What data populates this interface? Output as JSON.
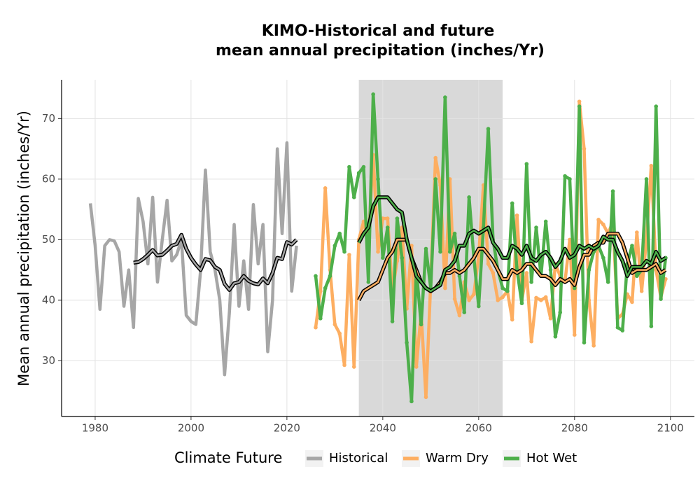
{
  "chart_data": {
    "type": "line",
    "title": [
      "KIMO-Historical and future",
      "mean annual precipitation (inches/Yr)"
    ],
    "y_label": "Mean annual precipitation (inches/Yr)",
    "legend_title": "Climate Future",
    "xlim": [
      1973,
      2105
    ],
    "ylim": [
      20.8,
      76.4
    ],
    "xticks": [
      1980,
      2000,
      2020,
      2040,
      2060,
      2080,
      2100
    ],
    "yticks": [
      30,
      40,
      50,
      60,
      70
    ],
    "grid": true,
    "shade": {
      "x": [
        2035,
        2065
      ],
      "color": "#d9d9d9"
    },
    "series": [
      {
        "name": "Historical",
        "color": "#a6a6a6",
        "markers": false,
        "x": [
          1979,
          1980,
          1981,
          1982,
          1983,
          1984,
          1985,
          1986,
          1987,
          1988,
          1989,
          1990,
          1991,
          1992,
          1993,
          1994,
          1995,
          1996,
          1997,
          1998,
          1999,
          2000,
          2001,
          2002,
          2003,
          2004,
          2005,
          2006,
          2007,
          2008,
          2009,
          2010,
          2011,
          2012,
          2013,
          2014,
          2015,
          2016,
          2017,
          2018,
          2019,
          2020,
          2021,
          2022
        ],
        "values": [
          56,
          49,
          38.5,
          49,
          50,
          49.8,
          48,
          39,
          45,
          35.5,
          56.8,
          53,
          46,
          57,
          43,
          50,
          56.5,
          46.5,
          47.5,
          50,
          37.5,
          36.5,
          36,
          45,
          61.5,
          48,
          45,
          40,
          27.7,
          38,
          52.5,
          39,
          46.5,
          38.5,
          55.8,
          46,
          52.5,
          31.5,
          40,
          65,
          51,
          66,
          41.5,
          49
        ],
        "rolling": {
          "x": [
            1988,
            1989,
            1990,
            1991,
            1992,
            1993,
            1994,
            1995,
            1996,
            1997,
            1998,
            1999,
            2000,
            2001,
            2002,
            2003,
            2004,
            2005,
            2006,
            2007,
            2008,
            2009,
            2010,
            2011,
            2012,
            2013,
            2014,
            2015,
            2016,
            2017,
            2018,
            2019,
            2020,
            2021,
            2022
          ],
          "values": [
            46.2,
            46.3,
            46.8,
            47.5,
            48.3,
            47.4,
            47.5,
            48.2,
            49,
            49.3,
            50.8,
            48.5,
            47,
            45.9,
            45,
            46.8,
            46.6,
            45.5,
            45,
            42.7,
            41.7,
            42.8,
            43,
            44,
            43.2,
            42.8,
            42.6,
            43.6,
            42.8,
            44.5,
            47,
            46.8,
            49.6,
            49.2,
            50
          ]
        }
      },
      {
        "name": "Warm Dry",
        "color": "#fdae61",
        "markers": true,
        "x": [
          2026,
          2027,
          2028,
          2029,
          2030,
          2031,
          2032,
          2033,
          2034,
          2035,
          2036,
          2037,
          2038,
          2039,
          2040,
          2041,
          2042,
          2043,
          2044,
          2045,
          2046,
          2047,
          2048,
          2049,
          2050,
          2051,
          2052,
          2053,
          2054,
          2055,
          2056,
          2057,
          2058,
          2059,
          2060,
          2061,
          2062,
          2063,
          2064,
          2065,
          2066,
          2067,
          2068,
          2069,
          2070,
          2071,
          2072,
          2073,
          2074,
          2075,
          2076,
          2077,
          2078,
          2079,
          2080,
          2081,
          2082,
          2083,
          2084,
          2085,
          2086,
          2087,
          2088,
          2089,
          2090,
          2091,
          2092,
          2093,
          2094,
          2095,
          2096,
          2097,
          2098,
          2099
        ],
        "values": [
          35.5,
          41.5,
          58.5,
          45,
          36,
          34.5,
          29.3,
          47.5,
          29,
          50,
          53,
          49.5,
          64,
          48,
          53.5,
          53.5,
          41.5,
          46.5,
          52,
          38.6,
          49,
          29,
          38,
          24,
          43,
          63.5,
          59,
          42,
          60,
          40.2,
          37.5,
          43,
          40,
          41,
          47.3,
          59,
          46,
          44.5,
          40,
          40.5,
          41.5,
          36.8,
          54,
          40,
          44.5,
          33.2,
          40.4,
          40,
          40.5,
          37,
          46,
          44,
          43,
          50,
          34.3,
          72.8,
          65,
          40,
          32.5,
          53.3,
          52.5,
          51,
          53,
          37,
          37.7,
          41,
          39.7,
          51.2,
          41.5,
          50,
          62.2,
          45,
          40.5,
          43.5
        ],
        "rolling": {
          "x": [
            2035,
            2036,
            2037,
            2038,
            2039,
            2040,
            2041,
            2042,
            2043,
            2044,
            2045,
            2046,
            2047,
            2048,
            2049,
            2050,
            2051,
            2052,
            2053,
            2054,
            2055,
            2056,
            2057,
            2058,
            2059,
            2060,
            2061,
            2062,
            2063,
            2064,
            2065,
            2066,
            2067,
            2068,
            2069,
            2070,
            2071,
            2072,
            2073,
            2074,
            2075,
            2076,
            2077,
            2078,
            2079,
            2080,
            2081,
            2082,
            2083,
            2084,
            2085,
            2086,
            2087,
            2088,
            2089,
            2090,
            2091,
            2092,
            2093,
            2094,
            2095,
            2096,
            2097,
            2098,
            2099
          ],
          "values": [
            40,
            41.5,
            42,
            42.5,
            43,
            45,
            47,
            48,
            50,
            50,
            50,
            47,
            45,
            43,
            42,
            41.5,
            42,
            43,
            44.5,
            44.5,
            45,
            44.5,
            45,
            46,
            47,
            48.5,
            48.5,
            47.5,
            46.5,
            45,
            43.5,
            43.5,
            45,
            44.5,
            45,
            46,
            46,
            45,
            44,
            44,
            43.5,
            42.5,
            43.5,
            43,
            43.5,
            42.5,
            45.5,
            47.5,
            47.5,
            49,
            49.5,
            49.5,
            51,
            51,
            51,
            49.5,
            47,
            44.5,
            45,
            45,
            45,
            45.5,
            46,
            44.5,
            45
          ]
        }
      },
      {
        "name": "Hot Wet",
        "color": "#4daf4a",
        "markers": true,
        "x": [
          2026,
          2027,
          2028,
          2029,
          2030,
          2031,
          2032,
          2033,
          2034,
          2035,
          2036,
          2037,
          2038,
          2039,
          2040,
          2041,
          2042,
          2043,
          2044,
          2045,
          2046,
          2047,
          2048,
          2049,
          2050,
          2051,
          2052,
          2053,
          2054,
          2055,
          2056,
          2057,
          2058,
          2059,
          2060,
          2061,
          2062,
          2063,
          2064,
          2065,
          2066,
          2067,
          2068,
          2069,
          2070,
          2071,
          2072,
          2073,
          2074,
          2075,
          2076,
          2077,
          2078,
          2079,
          2080,
          2081,
          2082,
          2083,
          2084,
          2085,
          2086,
          2087,
          2088,
          2089,
          2090,
          2091,
          2092,
          2093,
          2094,
          2095,
          2096,
          2097,
          2098,
          2099
        ],
        "values": [
          44,
          37,
          42,
          44,
          49,
          51,
          48,
          62,
          57,
          61,
          62,
          43,
          74,
          60,
          47,
          52,
          36.5,
          53.5,
          47,
          33,
          23.3,
          45,
          36,
          48.5,
          42,
          60,
          48,
          73.5,
          48,
          51,
          44,
          38,
          57,
          47,
          39,
          52,
          68.3,
          50,
          45,
          42,
          41.5,
          56,
          45,
          39.5,
          62.5,
          43,
          52,
          44,
          53,
          45,
          34,
          38,
          60.5,
          60,
          42,
          72,
          33,
          45,
          48,
          49,
          47,
          43,
          58,
          35.5,
          35,
          46,
          49,
          44,
          45,
          60,
          35.7,
          72,
          40.2,
          47
        ],
        "rolling": {
          "x": [
            2035,
            2036,
            2037,
            2038,
            2039,
            2040,
            2041,
            2042,
            2043,
            2044,
            2045,
            2046,
            2047,
            2048,
            2049,
            2050,
            2051,
            2052,
            2053,
            2054,
            2055,
            2056,
            2057,
            2058,
            2059,
            2060,
            2061,
            2062,
            2063,
            2064,
            2065,
            2066,
            2067,
            2068,
            2069,
            2070,
            2071,
            2072,
            2073,
            2074,
            2075,
            2076,
            2077,
            2078,
            2079,
            2080,
            2081,
            2082,
            2083,
            2084,
            2085,
            2086,
            2087,
            2088,
            2089,
            2090,
            2091,
            2092,
            2093,
            2094,
            2095,
            2096,
            2097,
            2098,
            2099
          ],
          "values": [
            49.5,
            51,
            52,
            55.5,
            57,
            57,
            57,
            56,
            55,
            54.5,
            50,
            47,
            44,
            43,
            42,
            41.5,
            42,
            42.5,
            45,
            45.5,
            46.5,
            49,
            49,
            51,
            51.5,
            51,
            51.5,
            52,
            49.5,
            48.5,
            47,
            47,
            49,
            48.5,
            47.5,
            49,
            47,
            46.5,
            47.5,
            48,
            47,
            45.5,
            46.5,
            48.5,
            47,
            47.5,
            49,
            48.5,
            49,
            48.5,
            49,
            50.5,
            50,
            50,
            48,
            46.5,
            44,
            45.5,
            45.5,
            45.5,
            46.5,
            46,
            48,
            46.5,
            47
          ]
        }
      }
    ]
  }
}
